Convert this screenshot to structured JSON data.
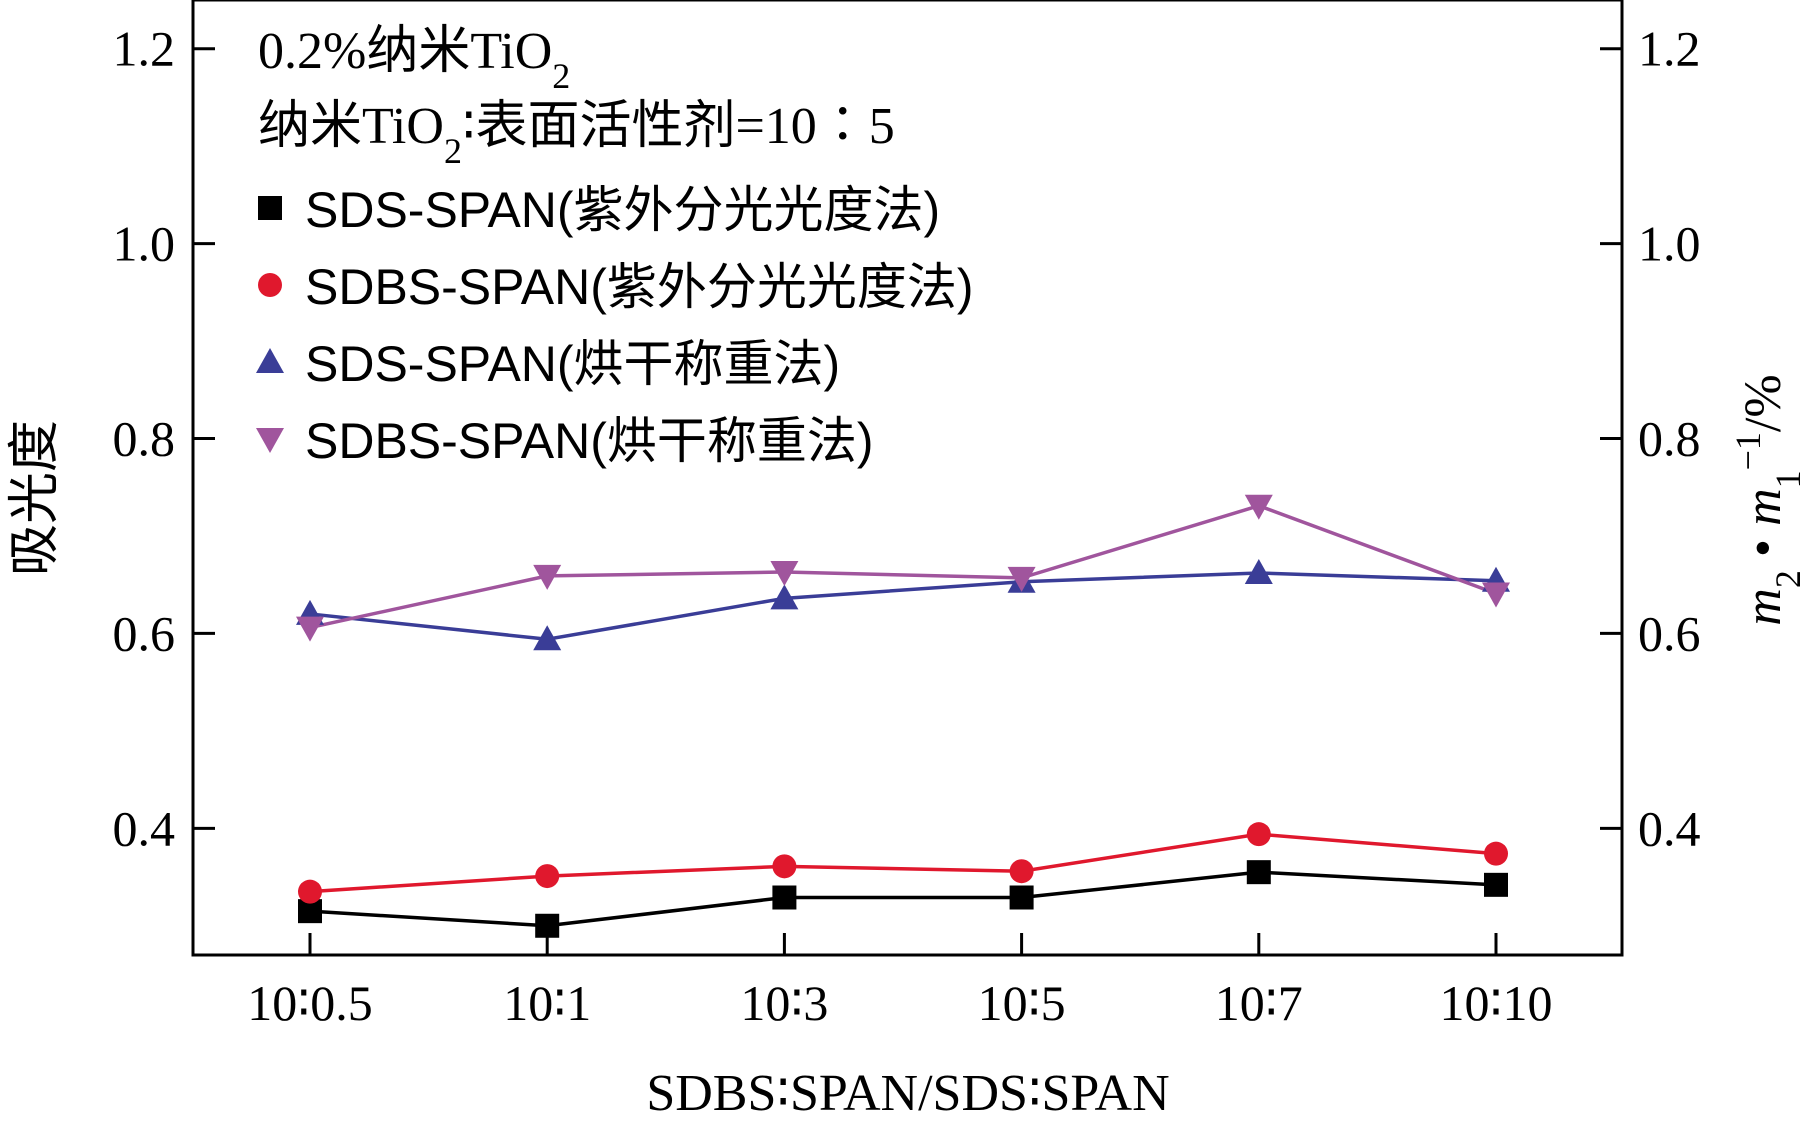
{
  "chart_data": {
    "type": "line",
    "annotations": {
      "line1": {
        "prefix": "0.2%纳米TiO",
        "sub": "2"
      },
      "line2": {
        "prefix": "纳米TiO",
        "sub": "2",
        "suffix": "∶表面活性剂=10∶5"
      }
    },
    "categories": [
      "10∶0.5",
      "10∶1",
      "10∶3",
      "10∶5",
      "10∶7",
      "10∶10"
    ],
    "xlabel": "SDBS∶SPAN/SDS∶SPAN",
    "ylabel": "吸光度",
    "y2label": {
      "m": "m",
      "sub2": "2",
      "dot": " • ",
      "sub1": "1",
      "sup": "−1",
      "suffix": "/%"
    },
    "ylim": [
      0.27,
      1.25
    ],
    "yticks": [
      0.4,
      0.6,
      0.8,
      1.0,
      1.2
    ],
    "ytick_labels": [
      "0.4",
      "0.6",
      "0.8",
      "1.0",
      "1.2"
    ],
    "grid": false,
    "legend_position": "top-left",
    "series": [
      {
        "name": "SDS-SPAN(紫外分光光度法)",
        "marker": "square",
        "color": "#000000",
        "values": [
          0.315,
          0.3,
          0.329,
          0.329,
          0.355,
          0.342
        ]
      },
      {
        "name": "SDBS-SPAN(紫外分光光度法)",
        "marker": "circle",
        "color": "#e0182d",
        "values": [
          0.335,
          0.351,
          0.361,
          0.356,
          0.394,
          0.374
        ]
      },
      {
        "name": "SDS-SPAN(烘干称重法)",
        "marker": "triangle-up",
        "color": "#3a3d97",
        "values": [
          0.62,
          0.594,
          0.636,
          0.653,
          0.662,
          0.654
        ]
      },
      {
        "name": "SDBS-SPAN(烘干称重法)",
        "marker": "triangle-down",
        "color": "#a0559d",
        "values": [
          0.606,
          0.659,
          0.663,
          0.657,
          0.731,
          0.641
        ]
      }
    ]
  }
}
